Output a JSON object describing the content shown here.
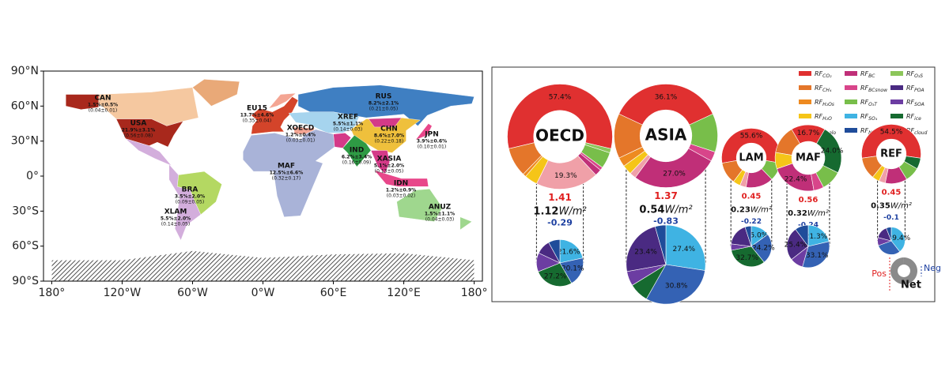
{
  "chart_data": [
    {
      "type": "map",
      "xlim": [
        -187,
        187
      ],
      "ylim": [
        -90,
        90
      ],
      "xticks": [
        {
          "value": -180,
          "label": "180°"
        },
        {
          "value": -120,
          "label": "120°W"
        },
        {
          "value": -60,
          "label": "60°W"
        },
        {
          "value": 0,
          "label": "0°W"
        },
        {
          "value": 60,
          "label": "60°E"
        },
        {
          "value": 120,
          "label": "120°E"
        },
        {
          "value": 180,
          "label": "180°"
        }
      ],
      "yticks": [
        {
          "value": 90,
          "label": "90°N"
        },
        {
          "value": 60,
          "label": "60°N"
        },
        {
          "value": 30,
          "label": "30°N"
        },
        {
          "value": 0,
          "label": "0°"
        },
        {
          "value": -30,
          "label": "30°S"
        },
        {
          "value": -60,
          "label": "60°S"
        },
        {
          "value": -90,
          "label": "90°S"
        }
      ],
      "regions": [
        {
          "name": "CAN",
          "share": "1.5%±0.5%",
          "forcing": "(0.04±0.01)",
          "color": "#f5c8a0"
        },
        {
          "name": "USA",
          "share": "21.9%±3.1%",
          "forcing": "(0.56±0.08)",
          "color": "#a8281c"
        },
        {
          "name": "EU15",
          "share": "13.7%±4.6%",
          "forcing": "(0.35±0.04)",
          "color": "#d4442a"
        },
        {
          "name": "XOECD",
          "share": "1.2%±0.4%",
          "forcing": "(0.03±0.01)",
          "color": "#f4a593"
        },
        {
          "name": "XREF",
          "share": "5.5%±1.1%",
          "forcing": "(0.14±0.03)",
          "color": "#a6d4ee"
        },
        {
          "name": "RUS",
          "share": "8.2%±2.1%",
          "forcing": "(0.21±0.05)",
          "color": "#3f7fc2"
        },
        {
          "name": "CHN",
          "share": "8.6%±7.0%",
          "forcing": "(0.22±0.18)",
          "color": "#efc03c"
        },
        {
          "name": "JPN",
          "share": "3.9%±0.6%",
          "forcing": "(0.10±0.01)",
          "color": "#e8478a"
        },
        {
          "name": "IND",
          "share": "6.2%±3.4%",
          "forcing": "(0.16±0.09)",
          "color": "#2e9a44"
        },
        {
          "name": "XASIA",
          "share": "5.1%±2.0%",
          "forcing": "(0.13±0.05)",
          "color": "#d43a88"
        },
        {
          "name": "IDN",
          "share": "1.2%±0.9%",
          "forcing": "(0.03±0.02)",
          "color": "#e8478a"
        },
        {
          "name": "MAF",
          "share": "12.5%±6.6%",
          "forcing": "(0.32±0.17)",
          "color": "#a9b3d8"
        },
        {
          "name": "BRA",
          "share": "3.5%±2.0%",
          "forcing": "(0.09±0.05)",
          "color": "#b4d862"
        },
        {
          "name": "XLAM",
          "share": "5.5%±2.0%",
          "forcing": "(0.14±0.05)",
          "color": "#d3aedc"
        },
        {
          "name": "ANUZ",
          "share": "1.5%±1.1%",
          "forcing": "(0.04±0.03)",
          "color": "#9fd78e"
        }
      ]
    },
    {
      "type": "donut",
      "unit": "W/m²",
      "components": [
        {
          "label": "RF",
          "sub": "CO₂",
          "color": "#e03030"
        },
        {
          "label": "RF",
          "sub": "CH₄",
          "color": "#e4762a"
        },
        {
          "label": "RF",
          "sub": "H₂Os",
          "color": "#ee8a20"
        },
        {
          "label": "RF",
          "sub": "H₂O",
          "color": "#f5c518"
        },
        {
          "label": "RF",
          "sub": "Xhalo",
          "color": "#f0a0a8"
        },
        {
          "label": "RF",
          "sub": "BC",
          "color": "#c02f78"
        },
        {
          "label": "RF",
          "sub": "BCsnow",
          "color": "#d8458a"
        },
        {
          "label": "RF",
          "sub": "O₃T",
          "color": "#78be4a"
        },
        {
          "label": "RF",
          "sub": "SO₄",
          "color": "#3fb3e3"
        },
        {
          "label": "RF",
          "sub": "NO₃",
          "color": "#1f4c9a"
        },
        {
          "label": "RF",
          "sub": "O₃S",
          "color": "#8cc65a"
        },
        {
          "label": "RF",
          "sub": "POA",
          "color": "#4a2a82"
        },
        {
          "label": "RF",
          "sub": "SOA",
          "color": "#6c3da2"
        },
        {
          "label": "RF",
          "sub": "ice",
          "color": "#166a30"
        },
        {
          "label": "RF",
          "sub": "cloud",
          "color": "#3462b4"
        }
      ],
      "panels": [
        {
          "name": "OECD",
          "positive": 1.41,
          "net": 1.12,
          "negative": -0.29,
          "outer": [
            57.4,
            9,
            1,
            4,
            19.3,
            2,
            1,
            5,
            0,
            0,
            1.3,
            0,
            0,
            0,
            0
          ],
          "outer_labels": [
            "57.4%",
            null,
            null,
            null,
            "19.3%",
            null,
            null,
            null,
            null,
            null,
            null,
            null,
            null,
            null,
            null
          ],
          "inner": [
            0,
            0,
            0,
            0,
            0,
            0,
            0,
            0,
            21.6,
            8,
            0,
            10,
            13.1,
            27.2,
            20.1
          ],
          "inner_labels": [
            null,
            null,
            null,
            null,
            null,
            null,
            null,
            null,
            "21.6%",
            null,
            null,
            null,
            null,
            "27.2%",
            "20.1%"
          ]
        },
        {
          "name": "ASIA",
          "positive": 1.37,
          "net": 0.54,
          "negative": -0.83,
          "outer": [
            36.1,
            14,
            2.9,
            3,
            2,
            27.0,
            3,
            12,
            0,
            0,
            0,
            0,
            0,
            0,
            0
          ],
          "outer_labels": [
            "36.1%",
            null,
            null,
            null,
            null,
            "27.0%",
            null,
            null,
            null,
            null,
            null,
            null,
            null,
            null,
            null
          ],
          "inner": [
            0,
            0,
            0,
            0,
            0,
            0,
            0,
            0,
            27.4,
            4.4,
            0,
            23.4,
            6,
            8,
            30.8
          ],
          "inner_labels": [
            null,
            null,
            null,
            null,
            null,
            null,
            null,
            null,
            "27.4%",
            null,
            null,
            "23.4%",
            null,
            null,
            "30.8%"
          ]
        },
        {
          "name": "LAM",
          "positive": 0.45,
          "net": 0.23,
          "negative": -0.22,
          "outer": [
            55.6,
            12,
            0,
            4,
            3.4,
            15,
            0,
            10,
            0,
            0,
            0,
            0,
            0,
            0,
            0
          ],
          "outer_labels": [
            "55.6%",
            null,
            null,
            null,
            null,
            null,
            null,
            null,
            null,
            null,
            null,
            null,
            null,
            null,
            null
          ],
          "inner": [
            0,
            0,
            0,
            0,
            0,
            0,
            0,
            0,
            15.0,
            5,
            0,
            18,
            5.1,
            32.7,
            24.2
          ],
          "inner_labels": [
            null,
            null,
            null,
            null,
            null,
            null,
            null,
            null,
            "15.0%",
            null,
            null,
            null,
            null,
            "32.7%",
            "24.2%"
          ]
        },
        {
          "name": "MAF",
          "positive": 0.56,
          "net": 0.32,
          "negative": -0.24,
          "outer": [
            16.7,
            14,
            0,
            8,
            0,
            22.4,
            4.9,
            10,
            0,
            0,
            0,
            0,
            0,
            24.0,
            0
          ],
          "outer_labels": [
            "16.7%",
            null,
            null,
            null,
            null,
            "22.4%",
            null,
            null,
            null,
            null,
            null,
            null,
            null,
            "24.0%",
            null
          ],
          "inner": [
            0,
            0,
            0,
            0,
            0,
            0,
            0,
            0,
            21.3,
            10.2,
            0,
            25.4,
            10,
            0,
            33.1
          ],
          "inner_labels": [
            null,
            null,
            null,
            null,
            null,
            null,
            null,
            null,
            "21.3%",
            null,
            null,
            "25.4%",
            null,
            null,
            "33.1%"
          ]
        },
        {
          "name": "REF",
          "positive": 0.45,
          "net": 0.35,
          "negative": -0.1,
          "outer": [
            54.5,
            12,
            0,
            4,
            3.5,
            12,
            0,
            8,
            0,
            0,
            0,
            0,
            0,
            6,
            0
          ],
          "outer_labels": [
            "54.5%",
            null,
            null,
            null,
            null,
            null,
            null,
            null,
            null,
            null,
            null,
            null,
            null,
            null,
            null
          ],
          "inner": [
            0,
            0,
            0,
            0,
            0,
            0,
            0,
            0,
            39.4,
            6,
            0,
            15,
            9.6,
            0,
            30
          ],
          "inner_labels": [
            null,
            null,
            null,
            null,
            null,
            null,
            null,
            null,
            "39.4%",
            null,
            null,
            null,
            null,
            null,
            null
          ]
        }
      ],
      "key": {
        "positive": "Pos",
        "net": "Net",
        "negative": "Neg"
      }
    }
  ]
}
